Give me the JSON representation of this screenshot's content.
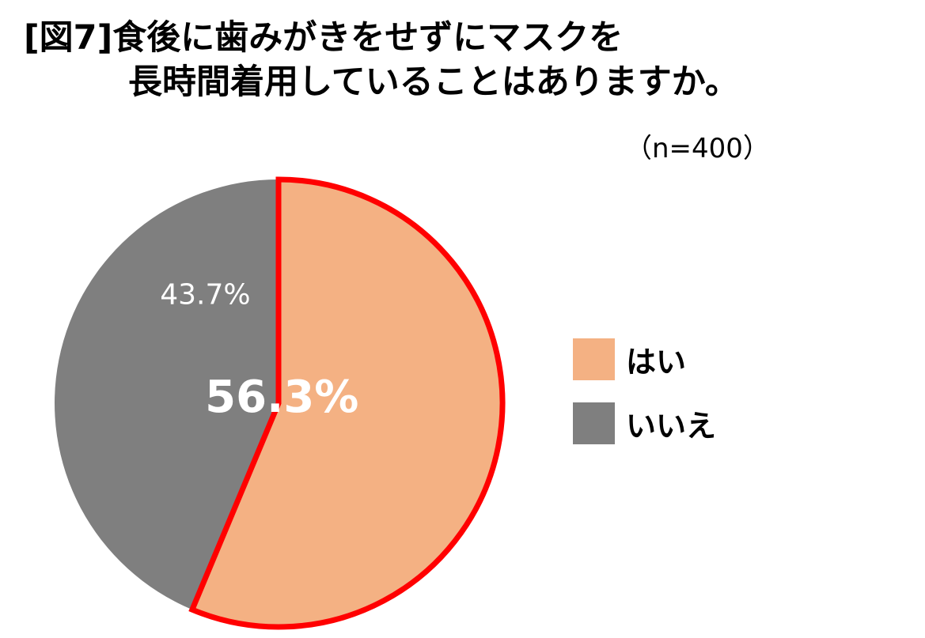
{
  "colors": {
    "yes": "#F4B183",
    "no": "#7F7F7F",
    "highlight": "#FF0000",
    "label_text": "#FFFFFF"
  },
  "chart_data": {
    "type": "pie",
    "title_line1": "[図7]食後に歯みがきをせずにマスクを",
    "title_line2": "長時間着用していることはありますか。",
    "sample_size": "（n=400）",
    "legend_position": "right",
    "slices": [
      {
        "name": "はい",
        "value": 56.3,
        "label": "56.3%"
      },
      {
        "name": "いいえ",
        "value": 43.7,
        "label": "43.7%"
      }
    ]
  }
}
